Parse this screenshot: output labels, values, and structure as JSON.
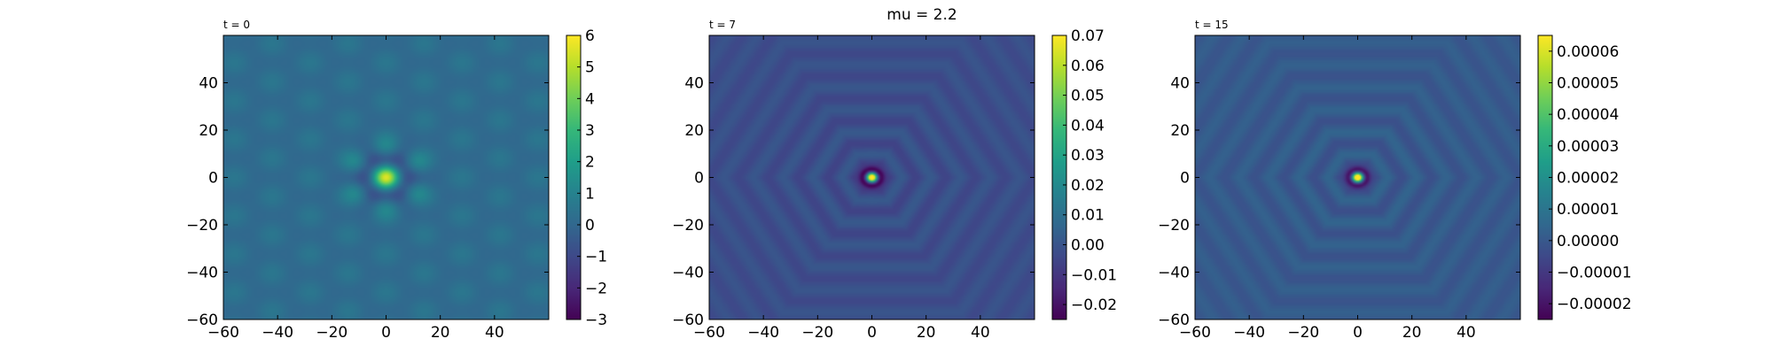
{
  "suptitle": "mu = 2.2",
  "colormap": {
    "name": "viridis",
    "stops": [
      "#440154",
      "#482878",
      "#3e4989",
      "#31688e",
      "#26828e",
      "#1f9e89",
      "#35b779",
      "#6ece58",
      "#b5de2b",
      "#fde725"
    ]
  },
  "chart_data": [
    {
      "type": "heatmap",
      "title": "t = 0",
      "xlim": [
        -60,
        60
      ],
      "ylim": [
        -60,
        60
      ],
      "x_ticks": [
        -60,
        -40,
        -20,
        0,
        20,
        40
      ],
      "x_tick_labels": [
        "−60",
        "−40",
        "−20",
        "0",
        "20",
        "40"
      ],
      "y_ticks": [
        -60,
        -40,
        -20,
        0,
        20,
        40
      ],
      "y_tick_labels": [
        "−60",
        "−40",
        "−20",
        "0",
        "20",
        "40"
      ],
      "pattern": "hexagonal lattice of weak spots with a strong localized hexagonal peak at the origin",
      "background_value": 0.2,
      "peak_value": 6,
      "colorbar": {
        "range": [
          -3,
          6
        ],
        "ticks": [
          -3,
          -2,
          -1,
          0,
          1,
          2,
          3,
          4,
          5,
          6
        ],
        "tick_labels": [
          "−3",
          "−2",
          "−1",
          "0",
          "1",
          "2",
          "3",
          "4",
          "5",
          "6"
        ]
      }
    },
    {
      "type": "heatmap",
      "title": "t = 7",
      "xlim": [
        -60,
        60
      ],
      "ylim": [
        -60,
        60
      ],
      "x_ticks": [
        -60,
        -40,
        -20,
        0,
        20,
        40
      ],
      "x_tick_labels": [
        "−60",
        "−40",
        "−20",
        "0",
        "20",
        "40"
      ],
      "y_ticks": [
        -60,
        -40,
        -20,
        0,
        20,
        40
      ],
      "y_tick_labels": [
        "−60",
        "−40",
        "−20",
        "0",
        "20",
        "40"
      ],
      "pattern": "hexagonal concentric rings radiating from a central peak",
      "background_value": -0.002,
      "peak_value": 0.07,
      "colorbar": {
        "range": [
          -0.025,
          0.07
        ],
        "ticks": [
          -0.02,
          -0.01,
          0.0,
          0.01,
          0.02,
          0.03,
          0.04,
          0.05,
          0.06,
          0.07
        ],
        "tick_labels": [
          "−0.02",
          "−0.01",
          "0.00",
          "0.01",
          "0.02",
          "0.03",
          "0.04",
          "0.05",
          "0.06",
          "0.07"
        ]
      }
    },
    {
      "type": "heatmap",
      "title": "t = 15",
      "xlim": [
        -60,
        60
      ],
      "ylim": [
        -60,
        60
      ],
      "x_ticks": [
        -60,
        -40,
        -20,
        0,
        20,
        40
      ],
      "x_tick_labels": [
        "−60",
        "−40",
        "−20",
        "0",
        "20",
        "40"
      ],
      "y_ticks": [
        -60,
        -40,
        -20,
        0,
        20,
        40
      ],
      "y_tick_labels": [
        "−60",
        "−40",
        "−20",
        "0",
        "20",
        "40"
      ],
      "pattern": "hexagonal concentric rings radiating from a central peak",
      "background_value": 5e-07,
      "peak_value": 6.5e-05,
      "colorbar": {
        "range": [
          -2.5e-05,
          6.5e-05
        ],
        "ticks": [
          -2e-05,
          -1e-05,
          0.0,
          1e-05,
          2e-05,
          3e-05,
          4e-05,
          5e-05,
          6e-05
        ],
        "tick_labels": [
          "−0.00002",
          "−0.00001",
          "0.00000",
          "0.00001",
          "0.00002",
          "0.00003",
          "0.00004",
          "0.00005",
          "0.00006"
        ]
      }
    }
  ]
}
